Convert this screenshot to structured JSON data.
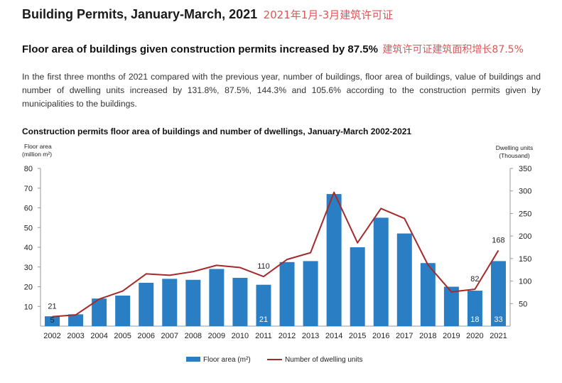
{
  "header": {
    "title": "Building Permits, January-March, 2021",
    "title_cn": "2021年1月-3月建筑许可证",
    "subtitle": "Floor area of buildings given construction permits increased by 87.5%",
    "subtitle_cn": "建筑许可证建筑面积增长87.5%",
    "paragraph": "In the first three months of 2021 compared with the previous year, number of buildings, floor area of buildings, value of buildings and number of dwelling units increased by 131.8%, 87.5%, 144.3% and 105.6% according to the construction permits given by municipalities to the buildings."
  },
  "chart_data": {
    "type": "bar",
    "title": "Construction permits floor area of buildings and number of dwellings, January-March 2002-2021",
    "categories": [
      "2002",
      "2003",
      "2004",
      "2005",
      "2006",
      "2007",
      "2008",
      "2009",
      "2010",
      "2011",
      "2012",
      "2013",
      "2014",
      "2015",
      "2016",
      "2017",
      "2018",
      "2019",
      "2020",
      "2021"
    ],
    "ylabel_left": [
      "Floor area",
      "(million m²)"
    ],
    "ylabel_right": [
      "Dwelling units",
      "(Thousand)"
    ],
    "ylim_left": [
      0,
      80
    ],
    "yticks_left": [
      10,
      20,
      30,
      40,
      50,
      60,
      70,
      80
    ],
    "ylim_right": [
      0,
      350
    ],
    "yticks_right": [
      50,
      100,
      150,
      200,
      250,
      300,
      350
    ],
    "grid": false,
    "legend_position": "bottom",
    "series": [
      {
        "name": "Floor area (m²)",
        "type": "bar",
        "axis": "left",
        "color": "#2a7fc4",
        "values": [
          5,
          6,
          14,
          15.5,
          22,
          24,
          23.5,
          29,
          24.5,
          21,
          32.5,
          33,
          67,
          40,
          55,
          47,
          32,
          20,
          18,
          33
        ]
      },
      {
        "name": "Number of dwelling units",
        "type": "line",
        "axis": "right",
        "color": "#a52a2a",
        "values": [
          21,
          25,
          60,
          78,
          116,
          113,
          121,
          135,
          130,
          110,
          148,
          163,
          297,
          185,
          261,
          239,
          136,
          76,
          82,
          168
        ]
      }
    ],
    "annotations": [
      {
        "series": "Floor area (m²)",
        "index": 0,
        "text": "5"
      },
      {
        "series": "Floor area (m²)",
        "index": 9,
        "text": "21"
      },
      {
        "series": "Floor area (m²)",
        "index": 18,
        "text": "18"
      },
      {
        "series": "Floor area (m²)",
        "index": 19,
        "text": "33"
      },
      {
        "series": "Number of dwelling units",
        "index": 0,
        "text": "21"
      },
      {
        "series": "Number of dwelling units",
        "index": 9,
        "text": "110"
      },
      {
        "series": "Number of dwelling units",
        "index": 18,
        "text": "82"
      },
      {
        "series": "Number of dwelling units",
        "index": 19,
        "text": "168"
      }
    ]
  }
}
